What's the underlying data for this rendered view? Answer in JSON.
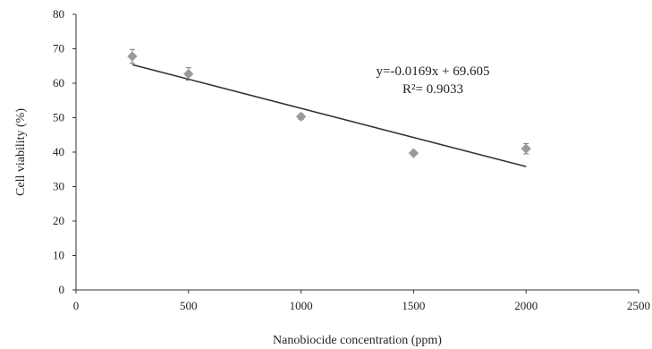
{
  "chart_data": {
    "type": "scatter",
    "xlabel": "Nanobiocide concentration (ppm)",
    "ylabel": "Cell viability (%)",
    "xlim": [
      0,
      2500
    ],
    "ylim": [
      0,
      80
    ],
    "x_ticks": [
      0,
      500,
      1000,
      1500,
      2000,
      2500
    ],
    "y_ticks": [
      0,
      10,
      20,
      30,
      40,
      50,
      60,
      70,
      80
    ],
    "grid": false,
    "legend": "none",
    "series": [
      {
        "x": [
          250,
          500,
          1000,
          1500,
          2000
        ],
        "y": [
          67.8,
          62.7,
          50.3,
          39.7,
          41.0
        ],
        "error": [
          2.0,
          1.8,
          0.8,
          0.6,
          1.5
        ],
        "marker_color": "#9a9a9a"
      }
    ],
    "trendline": {
      "slope": -0.0169,
      "intercept": 69.605,
      "x_range": [
        250,
        2000
      ],
      "color": "#333333"
    },
    "annotations": [
      {
        "id": "equation",
        "text": "y=-0.0169x + 69.605"
      },
      {
        "id": "r2",
        "text": "R²= 0.9033"
      }
    ]
  }
}
